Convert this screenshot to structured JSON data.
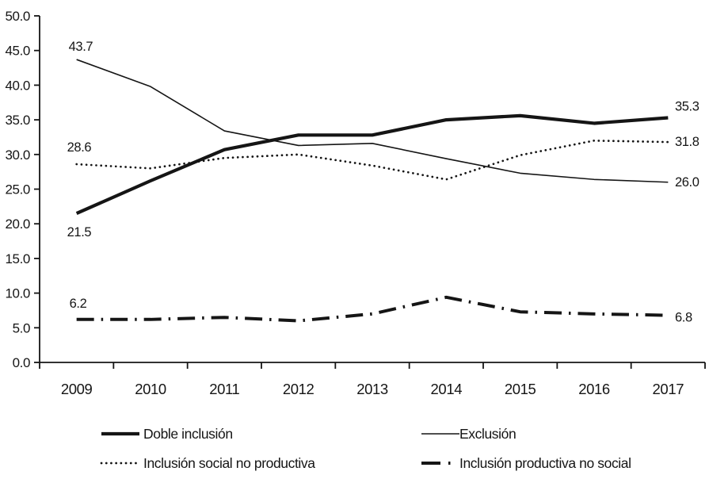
{
  "page": {
    "background_color": "#ffffff",
    "ink_color": "#151515"
  },
  "chart_data": {
    "type": "line",
    "title": "",
    "xlabel": "",
    "ylabel": "",
    "x_labels": [
      "2009",
      "2010",
      "2011",
      "2012",
      "2013",
      "2014",
      "2015",
      "2016",
      "2017"
    ],
    "ytick_labels": [
      "0.0",
      "5.0",
      "10.0",
      "15.0",
      "20.0",
      "25.0",
      "30.0",
      "35.0",
      "40.0",
      "45.0",
      "50.0"
    ],
    "ylim": [
      0,
      50
    ],
    "ytick_step": 5,
    "grid": false,
    "legend_position": "bottom-two-columns",
    "series": [
      {
        "name": "Doble inclusión",
        "line_style": "thick-solid",
        "values": [
          21.5,
          26.2,
          30.7,
          32.8,
          32.8,
          35.0,
          35.6,
          34.5,
          35.3
        ],
        "first_point_label": "21.5",
        "last_point_label": "35.3"
      },
      {
        "name": "Exclusión",
        "line_style": "thin-solid",
        "values": [
          43.7,
          39.8,
          33.4,
          31.3,
          31.6,
          29.4,
          27.3,
          26.4,
          26.0
        ],
        "first_point_label": "43.7",
        "last_point_label": "26.0"
      },
      {
        "name": "Inclusión social no productiva",
        "line_style": "dotted",
        "values": [
          28.6,
          28.0,
          29.5,
          30.0,
          28.4,
          26.4,
          29.9,
          32.0,
          31.8
        ],
        "first_point_label": "28.6",
        "last_point_label": "31.8"
      },
      {
        "name": "Inclusión productiva no social",
        "line_style": "dash-dot",
        "values": [
          6.2,
          6.2,
          6.5,
          6.0,
          7.0,
          9.4,
          7.3,
          7.0,
          6.8
        ],
        "first_point_label": "6.2",
        "last_point_label": "6.8"
      }
    ]
  }
}
